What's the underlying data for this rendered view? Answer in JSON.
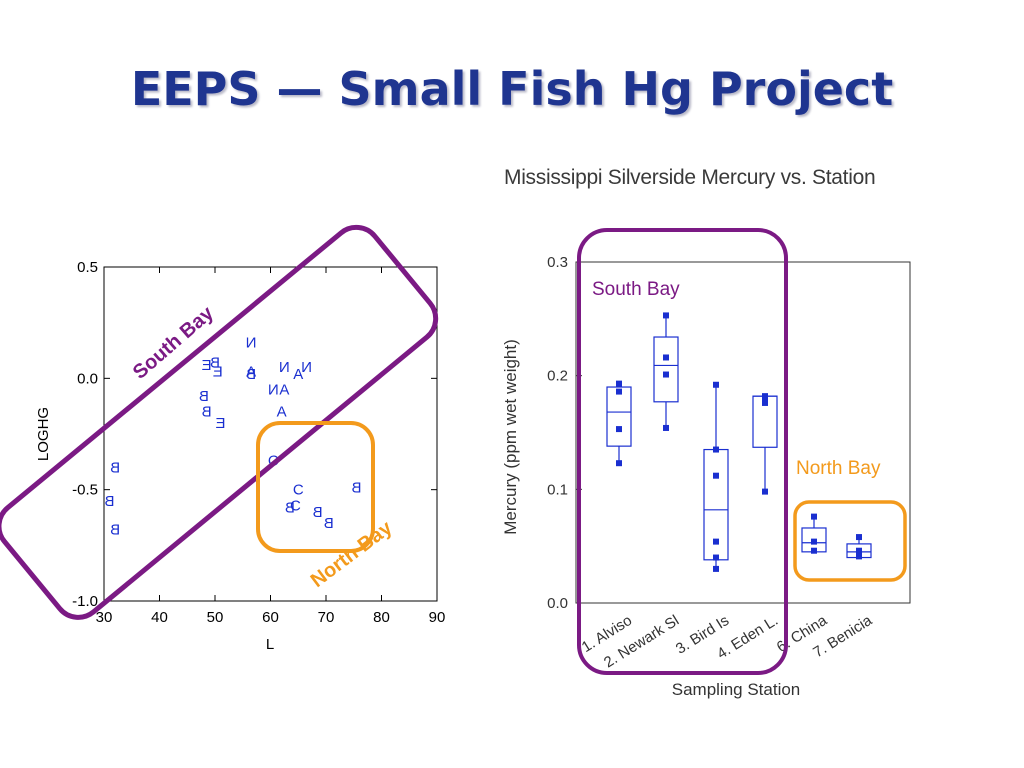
{
  "slide": {
    "title": "EEPS — Small Fish Hg Project",
    "colors": {
      "title": "#1f3590",
      "south_bay": "#7b1a84",
      "north_bay": "#f39a1c",
      "points": "#1a2fd0"
    }
  },
  "chart_data": [
    {
      "type": "scatter",
      "title": "",
      "xlabel": "L",
      "ylabel": "LOGHG",
      "xlim": [
        30,
        90
      ],
      "ylim": [
        -1.0,
        0.5
      ],
      "xticks": [
        "30",
        "40",
        "50",
        "60",
        "70",
        "80",
        "90"
      ],
      "yticks": [
        "0.5",
        "0.0",
        "-0.5",
        "-1.0"
      ],
      "point_labels_are_station_letters": true,
      "points": [
        {
          "label": "N",
          "mirrored": true,
          "x": 56.5,
          "y": 0.16
        },
        {
          "label": "E",
          "mirrored": true,
          "x": 48.5,
          "y": 0.06
        },
        {
          "label": "B",
          "mirrored": true,
          "x": 50.0,
          "y": 0.07
        },
        {
          "label": "E",
          "mirrored": true,
          "x": 50.5,
          "y": 0.03
        },
        {
          "label": "A",
          "mirrored": false,
          "x": 56.5,
          "y": 0.03
        },
        {
          "label": "B",
          "mirrored": true,
          "x": 56.5,
          "y": 0.02
        },
        {
          "label": "N",
          "mirrored": true,
          "x": 62.5,
          "y": 0.05
        },
        {
          "label": "N",
          "mirrored": true,
          "x": 66.5,
          "y": 0.05
        },
        {
          "label": "A",
          "mirrored": false,
          "x": 65.0,
          "y": 0.02
        },
        {
          "label": "N",
          "mirrored": true,
          "x": 60.5,
          "y": -0.05
        },
        {
          "label": "A",
          "mirrored": false,
          "x": 62.5,
          "y": -0.05
        },
        {
          "label": "B",
          "mirrored": true,
          "x": 48.0,
          "y": -0.08
        },
        {
          "label": "B",
          "mirrored": true,
          "x": 48.5,
          "y": -0.15
        },
        {
          "label": "A",
          "mirrored": false,
          "x": 62.0,
          "y": -0.15
        },
        {
          "label": "E",
          "mirrored": true,
          "x": 51.0,
          "y": -0.2
        },
        {
          "label": "B",
          "mirrored": true,
          "x": 32.0,
          "y": -0.4
        },
        {
          "label": "B",
          "mirrored": true,
          "x": 31.0,
          "y": -0.55
        },
        {
          "label": "B",
          "mirrored": true,
          "x": 32.0,
          "y": -0.68
        },
        {
          "label": "C",
          "mirrored": false,
          "x": 60.5,
          "y": -0.37
        },
        {
          "label": "C",
          "mirrored": false,
          "x": 65.0,
          "y": -0.5
        },
        {
          "label": "C",
          "mirrored": false,
          "x": 64.5,
          "y": -0.57
        },
        {
          "label": "B",
          "mirrored": true,
          "x": 63.5,
          "y": -0.58
        },
        {
          "label": "B",
          "mirrored": true,
          "x": 68.5,
          "y": -0.6
        },
        {
          "label": "B",
          "mirrored": true,
          "x": 70.5,
          "y": -0.65
        },
        {
          "label": "B",
          "mirrored": true,
          "x": 75.5,
          "y": -0.49
        }
      ],
      "annotations": [
        {
          "text": "South Bay",
          "color": "#7b1a84"
        },
        {
          "text": "North Bay",
          "color": "#f39a1c"
        }
      ]
    },
    {
      "type": "box",
      "title": "Mississippi Silverside Mercury vs. Station",
      "xlabel": "Sampling Station",
      "ylabel": "Mercury (ppm wet weight)",
      "ylim": [
        0.0,
        0.3
      ],
      "yticks": [
        "0.3",
        "0.2",
        "0.1",
        "0.0"
      ],
      "categories": [
        "1. Alviso",
        "2. Newark Sl",
        "3. Bird Is",
        "4. Eden L.",
        "6. China",
        "7. Benicia"
      ],
      "boxes": [
        {
          "min": 0.123,
          "q1": 0.138,
          "median": 0.168,
          "q3": 0.19,
          "max": 0.193,
          "points": [
            0.123,
            0.153,
            0.186,
            0.193
          ]
        },
        {
          "min": 0.154,
          "q1": 0.177,
          "median": 0.209,
          "q3": 0.234,
          "max": 0.253,
          "points": [
            0.154,
            0.201,
            0.216,
            0.253
          ]
        },
        {
          "min": 0.03,
          "q1": 0.038,
          "median": 0.082,
          "q3": 0.135,
          "max": 0.192,
          "points": [
            0.03,
            0.04,
            0.054,
            0.112,
            0.135,
            0.192
          ]
        },
        {
          "min": 0.098,
          "q1": 0.137,
          "median": 0.182,
          "q3": 0.182,
          "max": 0.182,
          "points": [
            0.098,
            0.176,
            0.18,
            0.182
          ]
        },
        {
          "min": 0.045,
          "q1": 0.045,
          "median": 0.053,
          "q3": 0.066,
          "max": 0.076,
          "points": [
            0.046,
            0.054,
            0.076
          ]
        },
        {
          "min": 0.04,
          "q1": 0.04,
          "median": 0.045,
          "q3": 0.052,
          "max": 0.058,
          "points": [
            0.041,
            0.046,
            0.058
          ]
        }
      ],
      "annotations": [
        {
          "text": "South Bay",
          "color": "#7b1a84"
        },
        {
          "text": "North Bay",
          "color": "#f39a1c"
        }
      ]
    }
  ]
}
